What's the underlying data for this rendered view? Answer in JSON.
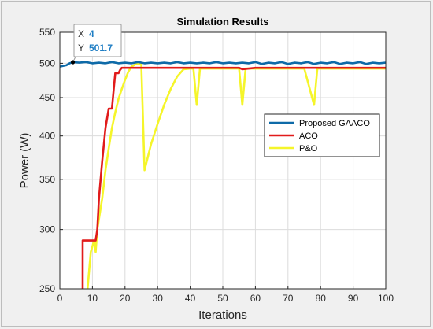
{
  "chart_data": {
    "type": "line",
    "title": "Simulation Results",
    "xlabel": "Iterations",
    "ylabel": "Power (W)",
    "xlim": [
      0,
      100
    ],
    "ylim": [
      250,
      550
    ],
    "y_scale": "log",
    "xticks": [
      0,
      10,
      20,
      30,
      40,
      50,
      60,
      70,
      80,
      90,
      100
    ],
    "yticks": [
      250,
      300,
      350,
      400,
      450,
      500,
      550
    ],
    "grid": true,
    "legend_position": "right",
    "series": [
      {
        "name": "Proposed GAACO",
        "color": "#0e6aa8",
        "x": [
          0,
          1,
          2,
          3,
          4,
          6,
          8,
          10,
          12,
          14,
          16,
          18,
          20,
          22,
          24,
          26,
          28,
          30,
          32,
          34,
          36,
          38,
          40,
          42,
          44,
          46,
          48,
          50,
          52,
          54,
          56,
          58,
          60,
          62,
          64,
          66,
          68,
          70,
          72,
          74,
          76,
          78,
          80,
          82,
          84,
          86,
          88,
          90,
          92,
          94,
          96,
          98,
          100
        ],
        "values": [
          495,
          496,
          497,
          500,
          501.7,
          501,
          502,
          500,
          501,
          500,
          502,
          500,
          501,
          500,
          502,
          500,
          501,
          500,
          501,
          500,
          502,
          500,
          501,
          500,
          501,
          500,
          502,
          500,
          501,
          500,
          501,
          500,
          502,
          499,
          501,
          500,
          502,
          499,
          501,
          500,
          502,
          499,
          501,
          500,
          502,
          499,
          501,
          500,
          502,
          499,
          501,
          500,
          501
        ]
      },
      {
        "name": "ACO",
        "color": "#e11b1b",
        "x": [
          7,
          7,
          8,
          10,
          11,
          11.5,
          12,
          12.5,
          13,
          14,
          15,
          15,
          16,
          16.5,
          17,
          17.5,
          18,
          18.5,
          19,
          21,
          30,
          40,
          50,
          55,
          56,
          60,
          70,
          80,
          90,
          100
        ],
        "values": [
          250,
          290,
          290,
          290,
          290,
          300,
          330,
          350,
          370,
          410,
          435,
          435,
          435,
          460,
          485,
          485,
          485,
          490,
          493,
          493,
          493,
          493,
          493,
          493,
          491,
          493,
          493,
          493,
          493,
          493
        ]
      },
      {
        "name": "P&O",
        "color": "#f5f52a",
        "x": [
          8.5,
          9,
          9.5,
          10,
          10.5,
          11,
          11.5,
          12,
          13,
          14,
          15,
          16,
          17,
          18,
          19,
          20,
          21,
          22,
          23,
          24,
          25,
          26,
          27,
          28,
          30,
          32,
          34,
          36,
          38,
          40,
          41,
          42,
          43,
          44,
          50,
          55,
          56,
          57,
          58,
          65,
          70,
          75,
          78,
          79,
          80,
          90,
          100
        ],
        "values": [
          250,
          265,
          280,
          285,
          290,
          280,
          300,
          310,
          330,
          360,
          385,
          410,
          430,
          448,
          462,
          475,
          487,
          495,
          498,
          500,
          498,
          360,
          375,
          390,
          415,
          440,
          462,
          480,
          491,
          492,
          492,
          440,
          492,
          492,
          492,
          492,
          440,
          492,
          492,
          492,
          492,
          492,
          440,
          492,
          492,
          492,
          492
        ]
      }
    ],
    "datatip": {
      "x_label": "X",
      "x_value": "4",
      "y_label": "Y",
      "y_value": "501.7",
      "at_x": 4,
      "at_y": 501.7
    }
  }
}
